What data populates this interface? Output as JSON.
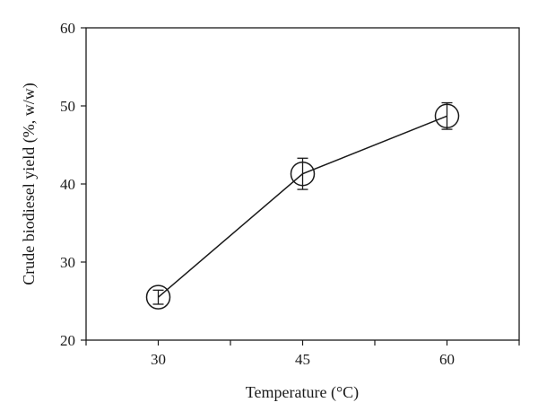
{
  "chart_data": {
    "type": "line",
    "title": "",
    "xlabel": "Temperature (°C)",
    "ylabel": "Crude biodiesel yield (%, w/w)",
    "x": [
      30,
      45,
      60
    ],
    "x_tick_labels": [
      "30",
      "45",
      "60"
    ],
    "xlim": [
      22.5,
      67.5
    ],
    "ylim": [
      20,
      60
    ],
    "y_ticks": [
      20,
      30,
      40,
      50,
      60
    ],
    "y_tick_labels": [
      "20",
      "30",
      "40",
      "50",
      "60"
    ],
    "series": [
      {
        "values": [
          25.5,
          41.3,
          48.7
        ],
        "errors": [
          0.9,
          2.0,
          1.7
        ],
        "marker": "open-circle",
        "color": "#1a1a1a"
      }
    ],
    "grid": false,
    "legend": "none"
  }
}
